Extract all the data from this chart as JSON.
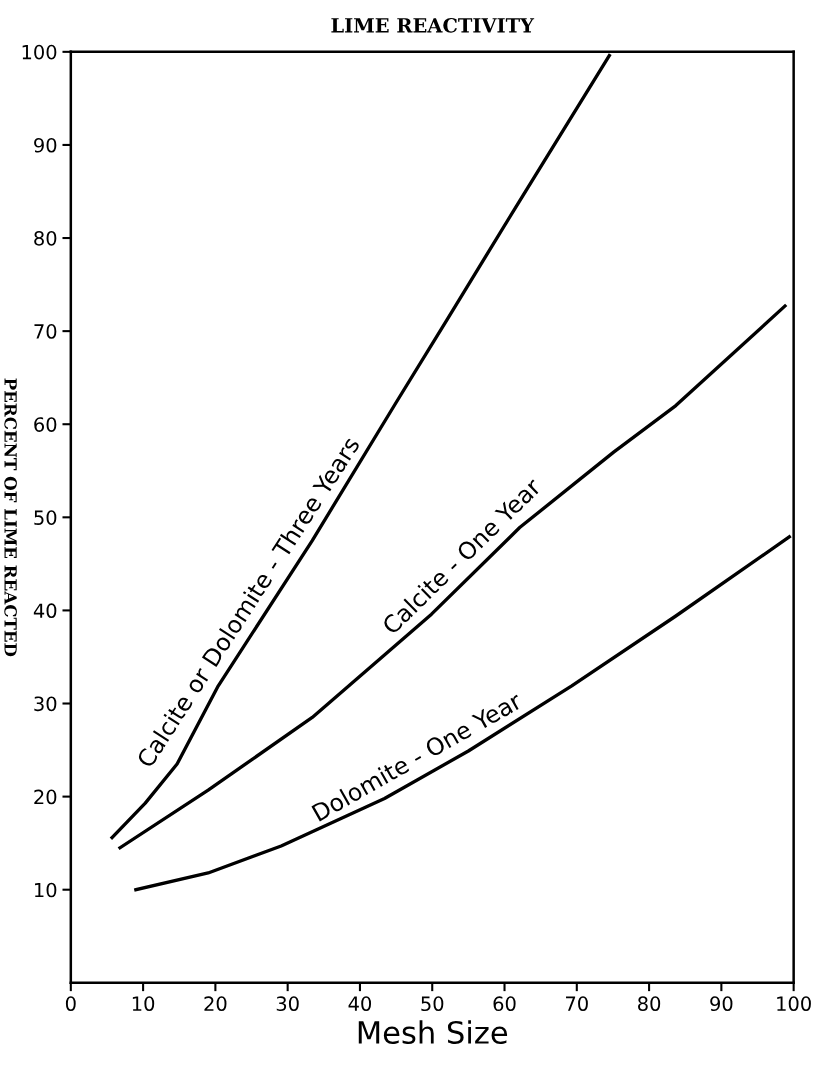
{
  "chart_data": {
    "type": "line",
    "title": "LIME REACTIVITY",
    "xlabel": "Mesh Size",
    "ylabel": "PERCENT OF LIME REACTED",
    "xlim": [
      0,
      100
    ],
    "xticks": [
      0,
      10,
      20,
      30,
      40,
      50,
      60,
      70,
      80,
      90,
      100
    ],
    "ylim": [
      0,
      100
    ],
    "yticks": [
      10,
      20,
      30,
      40,
      50,
      60,
      70,
      80,
      90,
      100
    ],
    "grid": false,
    "legend": false,
    "marker": "none",
    "line_style": "solid",
    "series": [
      {
        "name": "Calcite or Dolomite - Three Years",
        "color": "#000000",
        "x": [
          5.7,
          10.3,
          14.7,
          20.4,
          33.4,
          44.9,
          52.1,
          62.1,
          74.5
        ],
        "values": [
          15.6,
          19.3,
          23.5,
          31.9,
          47.5,
          62.2,
          71.3,
          84.0,
          99.6
        ]
      },
      {
        "name": "Calcite - One Year",
        "color": "#000000",
        "x": [
          6.8,
          19.0,
          33.4,
          49.9,
          62.1,
          75.1,
          83.7,
          98.8
        ],
        "values": [
          14.5,
          20.7,
          28.5,
          39.6,
          48.9,
          57.0,
          62.0,
          72.7
        ]
      },
      {
        "name": "Dolomite - One Year",
        "color": "#000000",
        "x": [
          9.0,
          19.0,
          29.1,
          43.4,
          55.0,
          69.3,
          83.7,
          99.4
        ],
        "values": [
          10.0,
          11.8,
          14.7,
          19.8,
          24.9,
          31.9,
          39.4,
          47.9
        ]
      }
    ]
  }
}
